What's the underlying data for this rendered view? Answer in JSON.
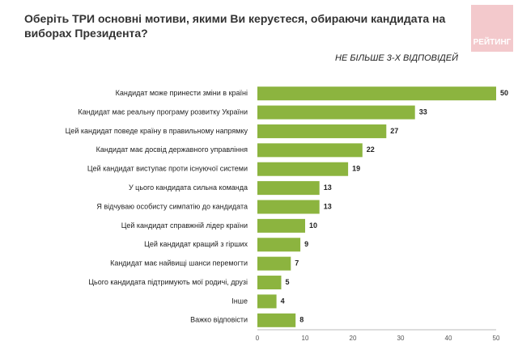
{
  "logo": "РЕЙТИНГ",
  "chart_data": {
    "type": "hbar",
    "title": "Оберіть ТРИ основні мотиви, якими Ви керуєтеся, обираючи кандидата на виборах Президента?",
    "subtitle": "НЕ БІЛЬШЕ 3-Х ВІДПОВІДЕЙ",
    "categories": [
      "Кандидат може принести зміни в країні",
      "Кандидат має реальну програму розвитку України",
      "Цей кандидат поведе країну в правильному напрямку",
      "Кандидат має досвід державного управління",
      "Цей кандидат виступає проти існуючої системи",
      "У цього кандидата сильна команда",
      "Я відчуваю особисту симпатію до кандидата",
      "Цей кандидат справжній лідер країни",
      "Цей кандидат кращий з гірших",
      "Кандидат має найвищі шанси перемогти",
      "Цього кандидата підтримують мої родичі, друзі",
      "Інше",
      "Важко відповісти"
    ],
    "values": [
      50,
      33,
      27,
      22,
      19,
      13,
      13,
      10,
      9,
      7,
      5,
      4,
      8
    ],
    "color": "#8cb43f",
    "xlim": [
      0,
      50
    ],
    "xticks": [
      0,
      10,
      20,
      30,
      40,
      50
    ],
    "grid": false
  }
}
